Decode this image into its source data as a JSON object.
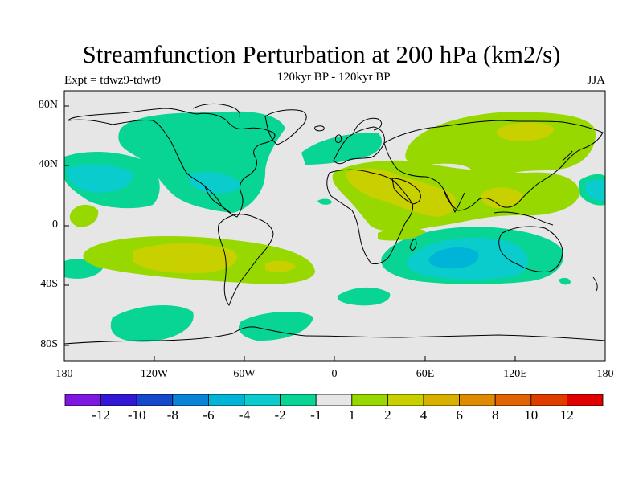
{
  "title": "Streamfunction Perturbation at 200 hPa (km2/s)",
  "experiment": "Expt = tdwz9-tdwt9",
  "subtitle": "120kyr BP - 120kyr BP",
  "season": "JJA",
  "map": {
    "projection": "cylindrical equidistant",
    "lon_range": [
      -180,
      180
    ],
    "lat_range": [
      -90,
      90
    ],
    "y_ticks": [
      "80N",
      "40N",
      "0",
      "40S",
      "80S"
    ],
    "x_ticks": [
      "180",
      "120W",
      "60W",
      "0",
      "60E",
      "120E",
      "180"
    ]
  },
  "colorbar": {
    "labels": [
      "-12",
      "-10",
      "-8",
      "-6",
      "-4",
      "-2",
      "-1",
      "1",
      "2",
      "4",
      "6",
      "8",
      "10",
      "12"
    ],
    "colors": [
      "#7e18e0",
      "#3418d8",
      "#1648cc",
      "#0a84d8",
      "#00b4d8",
      "#0acccc",
      "#08d494",
      "#e6e6e6",
      "#96d800",
      "#c8d000",
      "#d8b000",
      "#e08a00",
      "#e06400",
      "#e03c00",
      "#e00000"
    ]
  },
  "colors": {
    "nochange": "#e6e6e6",
    "neg1": "#08d494",
    "neg2": "#0acccc",
    "neg3": "#00b4d8",
    "pos1": "#96d800",
    "pos2": "#c8d000",
    "pos3": "#d8b000"
  }
}
